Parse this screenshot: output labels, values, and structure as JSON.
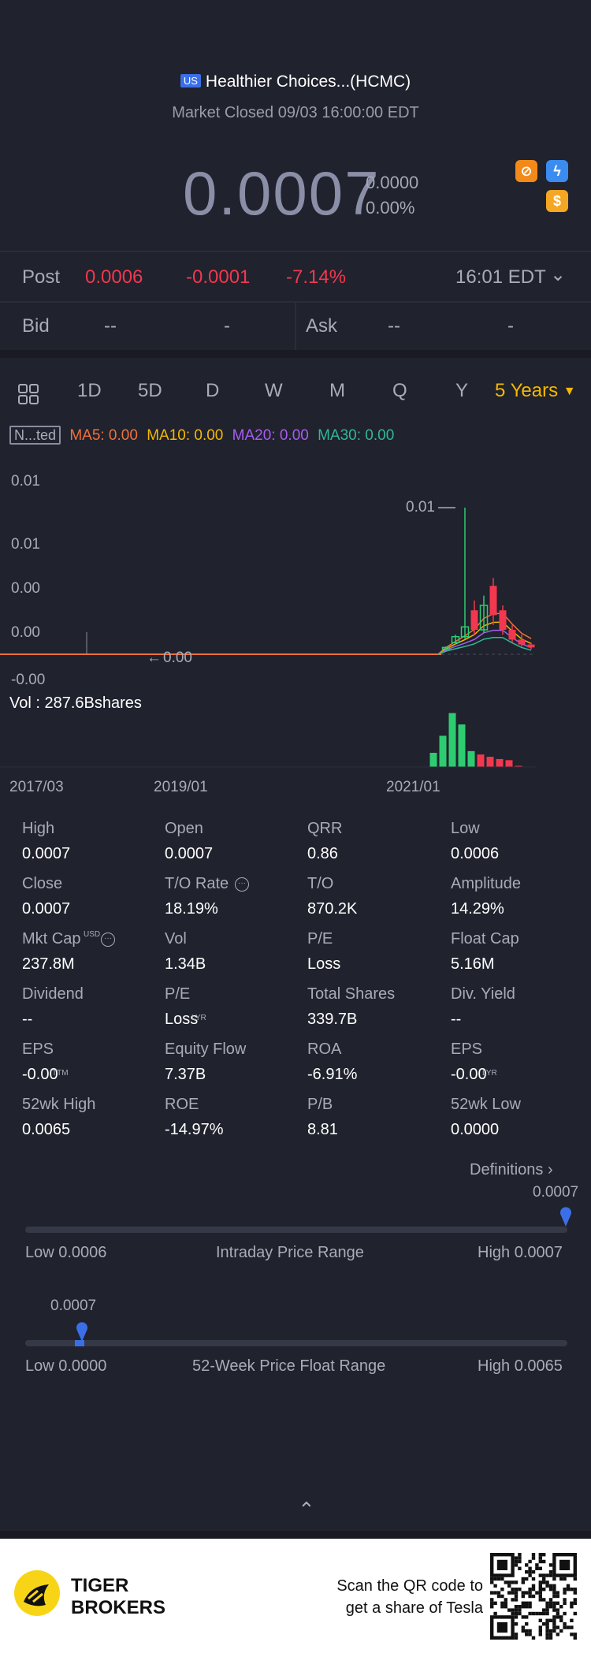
{
  "header": {
    "market_flag": "US",
    "title": "Healthier Choices...(HCMC)",
    "status": "Market Closed 09/03 16:00:00 EDT",
    "price": "0.0007",
    "change": "0.0000",
    "change_pct": "0.00%",
    "badge_colors": {
      "orange": "#f28a1a",
      "blue": "#3b8cf0",
      "gold": "#f5a623"
    }
  },
  "post": {
    "label": "Post",
    "price": "0.0006",
    "change": "-0.0001",
    "change_pct": "-7.14%",
    "time": "16:01 EDT"
  },
  "quote": {
    "bid_label": "Bid",
    "bid_value": "--",
    "bid_size": "-",
    "ask_label": "Ask",
    "ask_value": "--",
    "ask_size": "-"
  },
  "tabs": [
    "1D",
    "5D",
    "D",
    "W",
    "M",
    "Q",
    "Y"
  ],
  "active_period": "5 Years",
  "indicators": {
    "adjust": "N...ted",
    "ma5": "MA5: 0.00",
    "ma10": "MA10: 0.00",
    "ma20": "MA20: 0.00",
    "ma30": "MA30: 0.00",
    "colors": {
      "ma5": "#f2703a",
      "ma10": "#f5b800",
      "ma20": "#a85cf2",
      "ma30": "#2eb89b"
    }
  },
  "chart_data": {
    "type": "candlestick",
    "price_axis_labels": [
      "0.01",
      "0.01",
      "0.00",
      "0.00",
      "-0.00"
    ],
    "max_marker": "0.01",
    "min_marker": "0.00",
    "volume_label": "Vol  : 287.6Bshares",
    "x_labels": [
      "2017/03",
      "2019/01",
      "2021/01"
    ],
    "up_color": "#2ecc71",
    "down_color": "#f2384f",
    "candles": [
      {
        "o": 0.0006,
        "h": 0.0008,
        "l": 0.0005,
        "c": 0.0007,
        "dir": "up"
      },
      {
        "o": 0.0012,
        "h": 0.002,
        "l": 0.001,
        "c": 0.0018,
        "dir": "up"
      },
      {
        "o": 0.0018,
        "h": 0.015,
        "l": 0.0016,
        "c": 0.0028,
        "dir": "up"
      },
      {
        "o": 0.0045,
        "h": 0.0055,
        "l": 0.002,
        "c": 0.0025,
        "dir": "down"
      },
      {
        "o": 0.0025,
        "h": 0.006,
        "l": 0.0022,
        "c": 0.005,
        "dir": "up"
      },
      {
        "o": 0.007,
        "h": 0.0078,
        "l": 0.003,
        "c": 0.004,
        "dir": "down"
      },
      {
        "o": 0.0045,
        "h": 0.005,
        "l": 0.002,
        "c": 0.0025,
        "dir": "down"
      },
      {
        "o": 0.0025,
        "h": 0.003,
        "l": 0.0012,
        "c": 0.0015,
        "dir": "down"
      },
      {
        "o": 0.0015,
        "h": 0.002,
        "l": 0.0008,
        "c": 0.001,
        "dir": "down"
      },
      {
        "o": 0.001,
        "h": 0.0012,
        "l": 0.0005,
        "c": 0.0007,
        "dir": "down"
      }
    ],
    "volumes": [
      {
        "v": 0.25,
        "dir": "up"
      },
      {
        "v": 0.55,
        "dir": "up"
      },
      {
        "v": 0.95,
        "dir": "up"
      },
      {
        "v": 0.75,
        "dir": "up"
      },
      {
        "v": 0.28,
        "dir": "up"
      },
      {
        "v": 0.22,
        "dir": "down"
      },
      {
        "v": 0.18,
        "dir": "down"
      },
      {
        "v": 0.14,
        "dir": "down"
      },
      {
        "v": 0.12,
        "dir": "down"
      },
      {
        "v": 0.02,
        "dir": "down"
      }
    ]
  },
  "stats": [
    [
      {
        "label": "High",
        "value": "0.0007"
      },
      {
        "label": "Open",
        "value": "0.0007"
      },
      {
        "label": "QRR",
        "value": "0.86"
      },
      {
        "label": "Low",
        "value": "0.0006"
      }
    ],
    [
      {
        "label": "Close",
        "value": "0.0007"
      },
      {
        "label": "T/O Rate",
        "value": "18.19%"
      },
      {
        "label": "T/O",
        "value": "870.2K"
      },
      {
        "label": "Amplitude",
        "value": "14.29%"
      }
    ],
    [
      {
        "label": "Mkt Cap",
        "value": "237.8M"
      },
      {
        "label": "Vol",
        "value": "1.34B"
      },
      {
        "label": "P/E",
        "value": "Loss"
      },
      {
        "label": "Float Cap",
        "value": "5.16M"
      }
    ],
    [
      {
        "label": "Dividend",
        "value": "--"
      },
      {
        "label": "P/E",
        "value": "Loss"
      },
      {
        "label": "Total Shares",
        "value": "339.7B"
      },
      {
        "label": "Div. Yield",
        "value": "--"
      }
    ],
    [
      {
        "label": "EPS",
        "value": "-0.00"
      },
      {
        "label": "Equity Flow",
        "value": "7.37B"
      },
      {
        "label": "ROA",
        "value": "-6.91%"
      },
      {
        "label": "EPS",
        "value": "-0.00"
      }
    ],
    [
      {
        "label": "52wk High",
        "value": "0.0065"
      },
      {
        "label": "ROE",
        "value": "-14.97%"
      },
      {
        "label": "P/B",
        "value": "8.81"
      },
      {
        "label": "52wk Low",
        "value": "0.0000"
      }
    ]
  ],
  "stat_sups": {
    "mktcap": "USD",
    "pe_lyr": "LYR",
    "eps_ttm": "TTM",
    "eps_lyr": "LYR"
  },
  "definitions": "Definitions",
  "intraday": {
    "current": "0.0007",
    "low": "Low 0.0006",
    "title": "Intraday Price Range",
    "high": "High 0.0007",
    "position": 1.0
  },
  "week52": {
    "current": "0.0007",
    "low": "Low 0.0000",
    "title": "52-Week Price Float Range",
    "high": "High 0.0065",
    "position": 0.1
  },
  "footer": {
    "brand_line1": "TIGER",
    "brand_line2": "BROKERS",
    "scan_line1": "Scan the QR code to",
    "scan_line2": "get a share of Tesla"
  }
}
